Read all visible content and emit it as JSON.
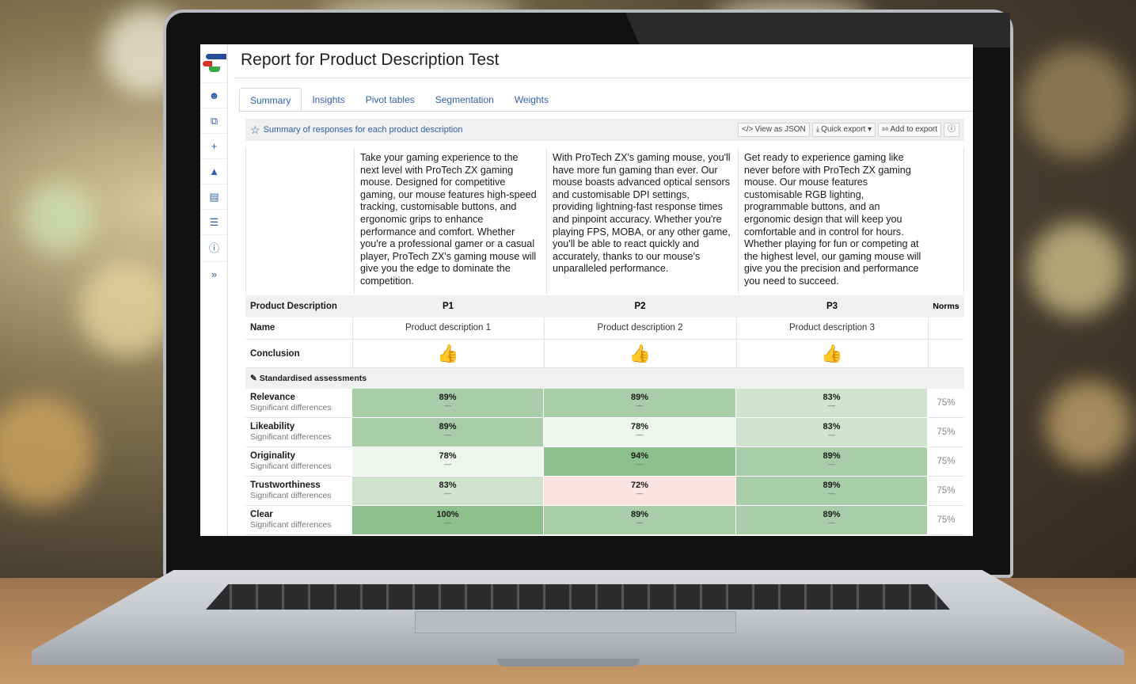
{
  "app": {
    "page_title": "Report for Product Description Test",
    "tabs": [
      {
        "label": "Summary",
        "active": true
      },
      {
        "label": "Insights",
        "active": false
      },
      {
        "label": "Pivot tables",
        "active": false
      },
      {
        "label": "Segmentation",
        "active": false
      },
      {
        "label": "Weights",
        "active": false
      }
    ],
    "sidebar_icons": [
      "user-icon",
      "stack-icon",
      "plus-icon",
      "flask-icon",
      "book-icon",
      "menu-icon",
      "help-icon",
      "expand-icon"
    ]
  },
  "panel": {
    "title": "Summary of responses for each product description",
    "tools": {
      "view_json": "View as JSON",
      "quick_export": "Quick export",
      "add_export": "Add to export"
    }
  },
  "descriptions": [
    "Take your gaming experience to the next level with ProTech ZX gaming mouse. Designed for competitive gaming, our mouse features high-speed tracking, customisable buttons, and ergonomic grips to enhance performance and comfort. Whether you're a professional gamer or a casual player, ProTech ZX's gaming mouse will give you the edge to dominate the competition.",
    "With ProTech ZX's gaming mouse, you'll have more fun gaming than ever. Our mouse boasts advanced optical sensors and customisable DPI settings, providing lightning-fast response times and pinpoint accuracy. Whether you're playing FPS, MOBA, or any other game, you'll be able to react quickly and accurately, thanks to our mouse's unparalleled performance.",
    "Get ready to experience gaming like never before with ProTech ZX gaming mouse. Our mouse features customisable RGB lighting, programmable buttons, and an ergonomic design that will keep you comfortable and in control for hours. Whether playing for fun or competing at the highest level, our gaming mouse will give you the precision and performance you need to succeed."
  ],
  "table": {
    "header_label": "Product Description",
    "columns": [
      "P1",
      "P2",
      "P3"
    ],
    "norms_label": "Norms",
    "name_label": "Name",
    "names": [
      "Product description 1",
      "Product description 2",
      "Product description 3"
    ],
    "conclusion_label": "Conclusion",
    "conclusion_icon": "thumbs-up-icon",
    "section_label": "Standardised assessments",
    "dash": "—",
    "assessments": [
      {
        "title": "Relevance",
        "sub": "Significant differences",
        "scores": [
          "89%",
          "89%",
          "83%"
        ],
        "colors": [
          "#a9cda9",
          "#a9cda9",
          "#cfe3cf"
        ],
        "norm": "75%"
      },
      {
        "title": "Likeability",
        "sub": "Significant differences",
        "scores": [
          "89%",
          "78%",
          "83%"
        ],
        "colors": [
          "#a9cda9",
          "#eef4ee",
          "#cfe3cf"
        ],
        "norm": "75%"
      },
      {
        "title": "Originality",
        "sub": "Significant differences",
        "scores": [
          "78%",
          "94%",
          "89%"
        ],
        "colors": [
          "#eef4ee",
          "#8ec08e",
          "#a9cda9"
        ],
        "norm": "75%"
      },
      {
        "title": "Trustworthiness",
        "sub": "Significant differences",
        "scores": [
          "83%",
          "72%",
          "89%"
        ],
        "colors": [
          "#cfe3cf",
          "#fbe3e3",
          "#a9cda9"
        ],
        "norm": "75%"
      },
      {
        "title": "Clear",
        "sub": "Significant differences",
        "scores": [
          "100%",
          "89%",
          "89%"
        ],
        "colors": [
          "#8ec08e",
          "#a9cda9",
          "#a9cda9"
        ],
        "norm": "75%"
      }
    ]
  }
}
